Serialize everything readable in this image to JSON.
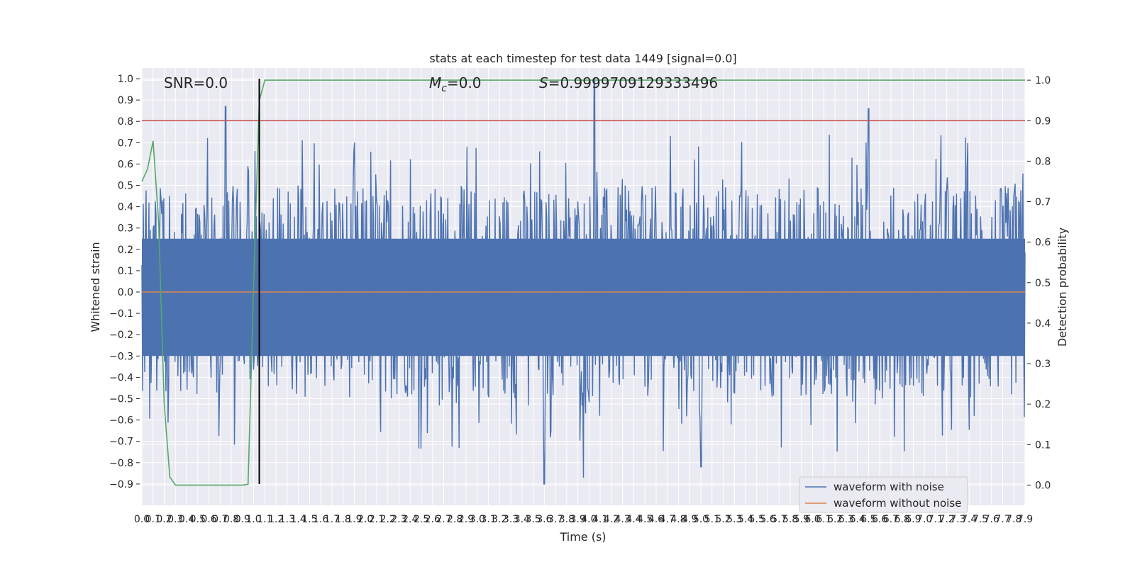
{
  "chart_data": {
    "type": "line",
    "title": "stats at each timestep for test data 1449 [signal=0.0]",
    "xlabel": "Time (s)",
    "ylabel_left": "Whitened strain",
    "ylabel_right": "Detection probability",
    "xlim": [
      0.0,
      7.9
    ],
    "ylim_left": [
      -1.0,
      1.05
    ],
    "ylim_right": [
      -0.05,
      1.03
    ],
    "x_ticks": [
      "0.0",
      "0.1",
      "0.2",
      "0.3",
      "0.4",
      "0.5",
      "0.6",
      "0.7",
      "0.8",
      "0.9",
      "1.0",
      "1.1",
      "1.2",
      "1.3",
      "1.4",
      "1.5",
      "1.6",
      "1.7",
      "1.8",
      "1.9",
      "2.0",
      "2.1",
      "2.2",
      "2.3",
      "2.4",
      "2.5",
      "2.6",
      "2.7",
      "2.8",
      "2.9",
      "3.0",
      "3.1",
      "3.2",
      "3.3",
      "3.4",
      "3.5",
      "3.6",
      "3.7",
      "3.8",
      "3.9",
      "4.0",
      "4.1",
      "4.2",
      "4.3",
      "4.4",
      "4.5",
      "4.6",
      "4.7",
      "4.8",
      "4.9",
      "5.0",
      "5.1",
      "5.2",
      "5.3",
      "5.4",
      "5.5",
      "5.6",
      "5.7",
      "5.8",
      "5.9",
      "6.0",
      "6.1",
      "6.2",
      "6.3",
      "6.4",
      "6.5",
      "6.6",
      "6.7",
      "6.8",
      "6.9",
      "7.0",
      "7.1",
      "7.2",
      "7.3",
      "7.4",
      "7.5",
      "7.6",
      "7.7",
      "7.8",
      "7.9"
    ],
    "y_ticks_left": [
      "1.0",
      "0.9",
      "0.8",
      "0.7",
      "0.6",
      "0.5",
      "0.4",
      "0.3",
      "0.2",
      "0.1",
      "0.0",
      "−0.1",
      "−0.2",
      "−0.3",
      "−0.4",
      "−0.5",
      "−0.6",
      "−0.7",
      "−0.8",
      "−0.9"
    ],
    "y_ticks_right": [
      "1.0",
      "0.9",
      "0.8",
      "0.7",
      "0.6",
      "0.5",
      "0.4",
      "0.3",
      "0.2",
      "0.1",
      "0.0"
    ],
    "annotations": {
      "snr": "SNR=0.0",
      "mc_symbol": "M",
      "mc_sub": "c",
      "mc_value": "=0.0",
      "s": "S=0.9999709129333496"
    },
    "grid": true,
    "legend_position": "bottom-right",
    "series": [
      {
        "name": "waveform with noise",
        "color": "#4c72b0",
        "axis": "left",
        "kind": "noise",
        "envelope_typical": [
          -0.55,
          0.55
        ],
        "peaks": [
          [
            0.75,
            0.87
          ],
          [
            4.05,
            1.0
          ],
          [
            6.5,
            0.86
          ],
          [
            3.6,
            -0.9
          ],
          [
            3.95,
            -0.87
          ],
          [
            5.0,
            -0.82
          ]
        ]
      },
      {
        "name": "waveform without noise",
        "color": "#dd8452",
        "axis": "left",
        "x": [
          0.0,
          7.9
        ],
        "y": [
          0.0,
          0.0
        ]
      },
      {
        "color": "#55a868",
        "axis": "right",
        "x": [
          0.0,
          0.05,
          0.1,
          0.15,
          0.2,
          0.25,
          0.3,
          0.35,
          0.4,
          0.5,
          0.6,
          0.7,
          0.8,
          0.9,
          0.95,
          1.0,
          1.05,
          1.1,
          7.9
        ],
        "y": [
          0.75,
          0.78,
          0.85,
          0.65,
          0.2,
          0.02,
          0.0,
          0.0,
          0.0,
          0.0,
          0.0,
          0.0,
          0.0,
          0.0,
          0.002,
          0.5,
          0.95,
          1.0,
          1.0
        ]
      },
      {
        "color": "#c44e52",
        "axis": "right",
        "x": [
          0.0,
          7.9
        ],
        "y": [
          0.9,
          0.9
        ]
      },
      {
        "color": "#000000",
        "axis": "left",
        "kind": "vertical",
        "x": [
          1.05,
          1.05
        ],
        "y": [
          -0.9,
          1.0
        ]
      }
    ]
  }
}
